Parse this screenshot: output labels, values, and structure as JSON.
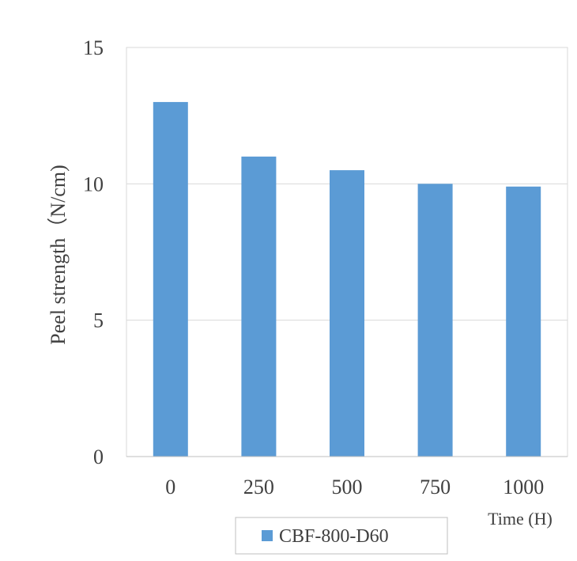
{
  "chart_data": {
    "type": "bar",
    "categories": [
      "0",
      "250",
      "500",
      "750",
      "1000"
    ],
    "series": [
      {
        "name": "CBF-800-D60",
        "values": [
          13.0,
          11.0,
          10.5,
          10.0,
          9.9
        ]
      }
    ],
    "xlabel": "Time (H)",
    "ylabel": "Peel strength（N/cm)",
    "ylim": [
      0,
      15
    ],
    "yticks": [
      "0",
      "5",
      "10",
      "15"
    ],
    "grid": true,
    "legend_position": "bottom",
    "colors": {
      "bar": "#5b9bd5",
      "grid": "#d9d9d9",
      "axis": "#bfbfbf",
      "text": "#404040"
    }
  }
}
